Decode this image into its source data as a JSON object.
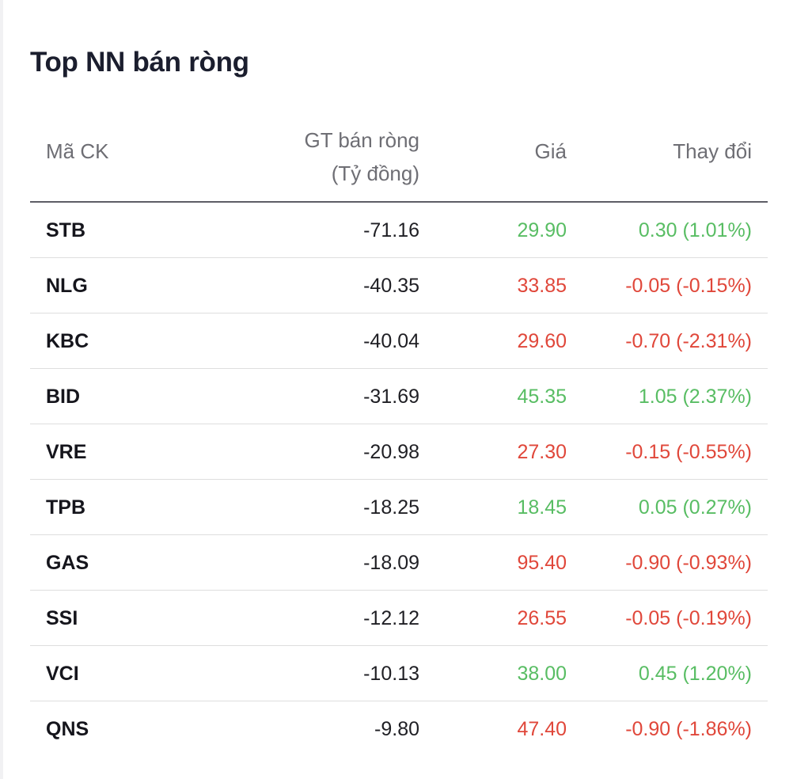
{
  "title": "Top NN bán ròng",
  "columns": {
    "code": "Mã CK",
    "value_line1": "GT bán ròng",
    "value_line2": "(Tỷ đồng)",
    "price": "Giá",
    "change": "Thay đổi"
  },
  "colors": {
    "up": "#58bd63",
    "down": "#e0473a"
  },
  "rows": [
    {
      "code": "STB",
      "value": "-71.16",
      "price": "29.90",
      "change": "0.30 (1.01%)",
      "direction": "up"
    },
    {
      "code": "NLG",
      "value": "-40.35",
      "price": "33.85",
      "change": "-0.05 (-0.15%)",
      "direction": "down"
    },
    {
      "code": "KBC",
      "value": "-40.04",
      "price": "29.60",
      "change": "-0.70 (-2.31%)",
      "direction": "down"
    },
    {
      "code": "BID",
      "value": "-31.69",
      "price": "45.35",
      "change": "1.05 (2.37%)",
      "direction": "up"
    },
    {
      "code": "VRE",
      "value": "-20.98",
      "price": "27.30",
      "change": "-0.15 (-0.55%)",
      "direction": "down"
    },
    {
      "code": "TPB",
      "value": "-18.25",
      "price": "18.45",
      "change": "0.05 (0.27%)",
      "direction": "up"
    },
    {
      "code": "GAS",
      "value": "-18.09",
      "price": "95.40",
      "change": "-0.90 (-0.93%)",
      "direction": "down"
    },
    {
      "code": "SSI",
      "value": "-12.12",
      "price": "26.55",
      "change": "-0.05 (-0.19%)",
      "direction": "down"
    },
    {
      "code": "VCI",
      "value": "-10.13",
      "price": "38.00",
      "change": "0.45 (1.20%)",
      "direction": "up"
    },
    {
      "code": "QNS",
      "value": "-9.80",
      "price": "47.40",
      "change": "-0.90 (-1.86%)",
      "direction": "down"
    }
  ]
}
